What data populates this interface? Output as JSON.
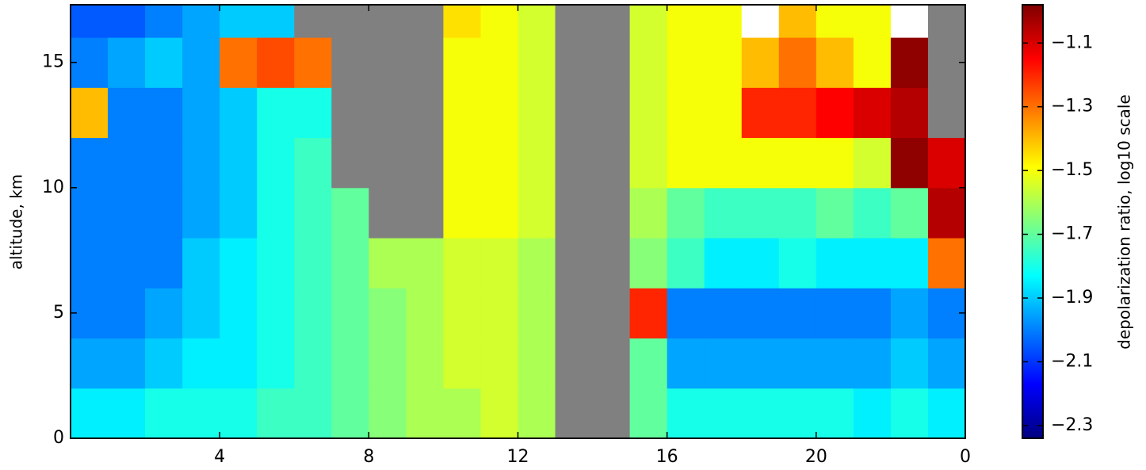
{
  "chart_data": {
    "type": "heatmap",
    "ylabel": "altitude, km",
    "colorbar_label": "depolarization ratio, log10 scale",
    "colormap": "jet",
    "null_color": "#808080",
    "xlim": [
      0,
      24
    ],
    "ylim": [
      0,
      17.3
    ],
    "xticks": [
      4,
      8,
      12,
      16,
      20,
      {
        "value": 24,
        "label": "0"
      }
    ],
    "yticks": [
      0,
      5,
      10,
      15
    ],
    "clim": [
      -2.34,
      -0.98
    ],
    "cticks": [
      {
        "value": -2.3,
        "label": "−2.3"
      },
      {
        "value": -2.1,
        "label": "−2.1"
      },
      {
        "value": -1.9,
        "label": "−1.9"
      },
      {
        "value": -1.7,
        "label": "−1.7"
      },
      {
        "value": -1.5,
        "label": "−1.5"
      },
      {
        "value": -1.3,
        "label": "−1.3"
      },
      {
        "value": -1.1,
        "label": "−1.1"
      }
    ],
    "xbins": [
      0,
      1,
      2,
      3,
      4,
      5,
      6,
      7,
      8,
      9,
      10,
      11,
      12,
      13,
      14,
      15,
      16,
      17,
      18,
      19,
      20,
      21,
      22,
      23,
      24
    ],
    "ybins": [
      0,
      2,
      4,
      6,
      8,
      10,
      12,
      14,
      16,
      17.3
    ],
    "z": [
      [
        -1.85,
        -1.85,
        -1.8,
        -1.8,
        -1.8,
        -1.75,
        -1.75,
        -1.7,
        -1.65,
        -1.6,
        -1.6,
        -1.55,
        -1.6,
        null,
        null,
        -1.7,
        -1.8,
        -1.8,
        -1.8,
        -1.8,
        -1.8,
        -1.85,
        -1.8,
        -1.85
      ],
      [
        -1.95,
        -1.95,
        -1.9,
        -1.85,
        -1.85,
        -1.8,
        -1.75,
        -1.7,
        -1.65,
        -1.6,
        -1.55,
        -1.55,
        -1.6,
        null,
        null,
        -1.7,
        -1.95,
        -1.95,
        -1.95,
        -1.95,
        -1.95,
        -1.95,
        -1.9,
        -1.95
      ],
      [
        -2.0,
        -2.0,
        -1.95,
        -1.9,
        -1.85,
        -1.8,
        -1.75,
        -1.7,
        -1.65,
        -1.6,
        -1.55,
        -1.55,
        -1.6,
        null,
        null,
        -1.2,
        -2.0,
        -2.0,
        -2.0,
        -2.0,
        -2.0,
        -2.0,
        -1.95,
        -2.0
      ],
      [
        -2.0,
        -2.0,
        -2.0,
        -1.9,
        -1.85,
        -1.8,
        -1.75,
        -1.7,
        -1.6,
        -1.6,
        -1.55,
        -1.55,
        -1.6,
        null,
        null,
        -1.65,
        -1.75,
        -1.85,
        -1.85,
        -1.8,
        -1.85,
        -1.85,
        -1.85,
        -1.3
      ],
      [
        -2.0,
        -2.0,
        -2.0,
        -1.95,
        -1.9,
        -1.8,
        -1.75,
        -1.7,
        null,
        null,
        -1.5,
        -1.5,
        -1.55,
        null,
        null,
        -1.6,
        -1.7,
        -1.75,
        -1.75,
        -1.75,
        -1.7,
        -1.75,
        -1.7,
        -1.05
      ],
      [
        -2.0,
        -2.0,
        -2.0,
        -1.95,
        -1.9,
        -1.8,
        -1.75,
        null,
        null,
        null,
        -1.5,
        -1.5,
        -1.55,
        null,
        null,
        -1.55,
        -1.5,
        -1.5,
        -1.5,
        -1.5,
        -1.5,
        -1.55,
        -1.0,
        -1.1
      ],
      [
        -1.4,
        -2.0,
        -2.0,
        -1.95,
        -1.9,
        -1.8,
        -1.8,
        null,
        null,
        null,
        -1.5,
        -1.5,
        -1.55,
        null,
        null,
        -1.55,
        -1.5,
        -1.5,
        -1.2,
        -1.2,
        -1.15,
        -1.1,
        -1.05,
        null
      ],
      [
        -2.0,
        -1.95,
        -1.9,
        -1.95,
        -1.3,
        -1.25,
        -1.3,
        null,
        null,
        null,
        -1.5,
        -1.5,
        -1.55,
        null,
        null,
        -1.55,
        -1.5,
        -1.5,
        -1.4,
        -1.3,
        -1.4,
        -1.5,
        -1.0,
        null
      ],
      [
        -2.05,
        -2.05,
        -2.0,
        -1.95,
        -1.9,
        -1.9,
        null,
        null,
        null,
        null,
        -1.45,
        -1.5,
        -1.55,
        null,
        null,
        -1.55,
        -1.5,
        -1.5,
        -0.95,
        -1.4,
        -1.5,
        -1.5,
        -0.95,
        null
      ]
    ]
  }
}
